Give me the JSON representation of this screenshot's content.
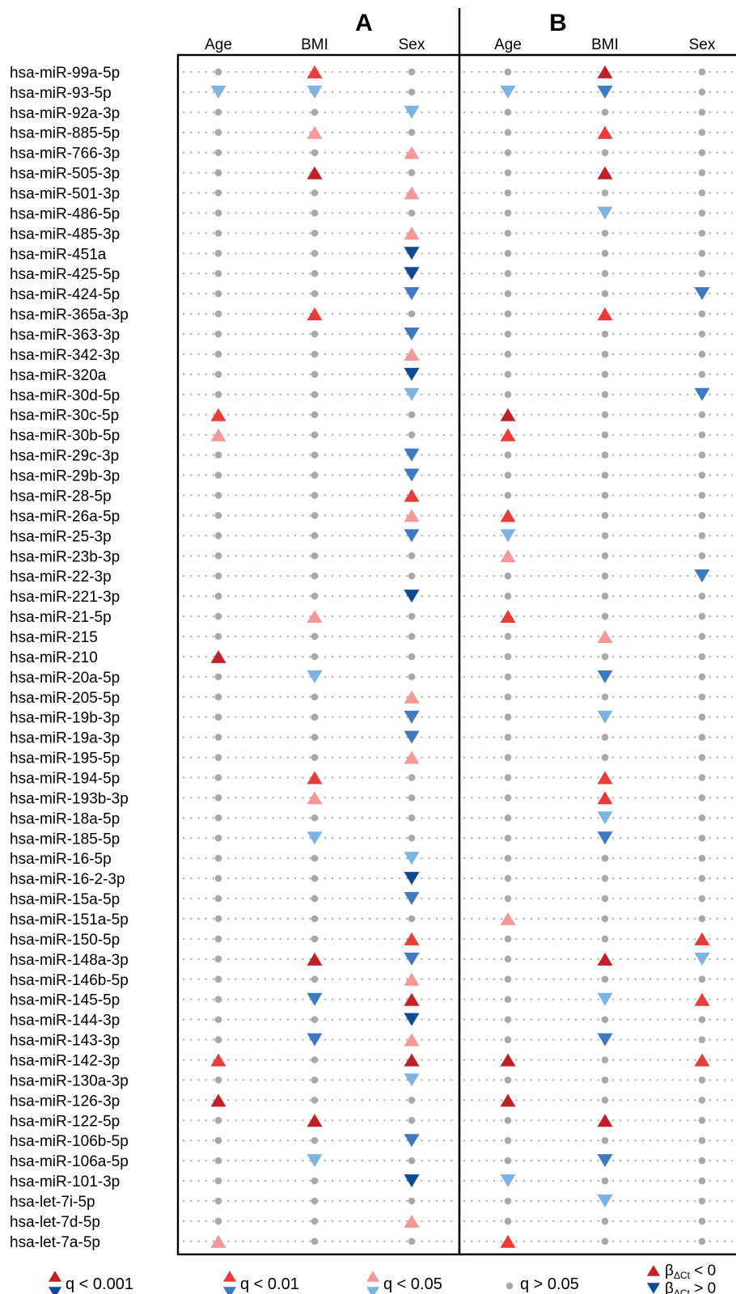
{
  "chart_data": {
    "type": "scatter",
    "panels": [
      {
        "label": "A",
        "columns": [
          "Age",
          "BMI",
          "Sex"
        ]
      },
      {
        "label": "B",
        "columns": [
          "Age",
          "BMI",
          "Sex"
        ]
      }
    ],
    "mirnas": [
      "hsa-miR-99a-5p",
      "hsa-miR-93-5p",
      "hsa-miR-92a-3p",
      "hsa-miR-885-5p",
      "hsa-miR-766-3p",
      "hsa-miR-505-3p",
      "hsa-miR-501-3p",
      "hsa-miR-486-5p",
      "hsa-miR-485-3p",
      "hsa-miR-451a",
      "hsa-miR-425-5p",
      "hsa-miR-424-5p",
      "hsa-miR-365a-3p",
      "hsa-miR-363-3p",
      "hsa-miR-342-3p",
      "hsa-miR-320a",
      "hsa-miR-30d-5p",
      "hsa-miR-30c-5p",
      "hsa-miR-30b-5p",
      "hsa-miR-29c-3p",
      "hsa-miR-29b-3p",
      "hsa-miR-28-5p",
      "hsa-miR-26a-5p",
      "hsa-miR-25-3p",
      "hsa-miR-23b-3p",
      "hsa-miR-22-3p",
      "hsa-miR-221-3p",
      "hsa-miR-21-5p",
      "hsa-miR-215",
      "hsa-miR-210",
      "hsa-miR-20a-5p",
      "hsa-miR-205-5p",
      "hsa-miR-19b-3p",
      "hsa-miR-19a-3p",
      "hsa-miR-195-5p",
      "hsa-miR-194-5p",
      "hsa-miR-193b-3p",
      "hsa-miR-18a-5p",
      "hsa-miR-185-5p",
      "hsa-miR-16-5p",
      "hsa-miR-16-2-3p",
      "hsa-miR-15a-5p",
      "hsa-miR-151a-5p",
      "hsa-miR-150-5p",
      "hsa-miR-148a-3p",
      "hsa-miR-146b-5p",
      "hsa-miR-145-5p",
      "hsa-miR-144-3p",
      "hsa-miR-143-3p",
      "hsa-miR-142-3p",
      "hsa-miR-130a-3p",
      "hsa-miR-126-3p",
      "hsa-miR-122-5p",
      "hsa-miR-106b-5p",
      "hsa-miR-106a-5p",
      "hsa-miR-101-3p",
      "hsa-let-7i-5p",
      "hsa-let-7d-5p",
      "hsa-let-7a-5p"
    ],
    "encoding_note": "cell codes: 0 = q > 0.05; +1/+2/+3 = up-triangle (beta_dCt < 0) at q<0.05/q<0.01/q<0.001; -1/-2/-3 = down-triangle (beta_dCt > 0) at q<0.05/q<0.01/q<0.001",
    "values": {
      "A": [
        [
          0,
          2,
          0
        ],
        [
          -1,
          -1,
          0
        ],
        [
          0,
          0,
          -1
        ],
        [
          0,
          1,
          0
        ],
        [
          0,
          0,
          1
        ],
        [
          0,
          3,
          0
        ],
        [
          0,
          0,
          1
        ],
        [
          0,
          0,
          0
        ],
        [
          0,
          0,
          1
        ],
        [
          0,
          0,
          -3
        ],
        [
          0,
          0,
          -3
        ],
        [
          0,
          0,
          -2
        ],
        [
          0,
          2,
          0
        ],
        [
          0,
          0,
          -2
        ],
        [
          0,
          0,
          1
        ],
        [
          0,
          0,
          -3
        ],
        [
          0,
          0,
          -1
        ],
        [
          2,
          0,
          0
        ],
        [
          1,
          0,
          0
        ],
        [
          0,
          0,
          -2
        ],
        [
          0,
          0,
          -2
        ],
        [
          0,
          0,
          2
        ],
        [
          0,
          0,
          1
        ],
        [
          0,
          0,
          -2
        ],
        [
          0,
          0,
          0
        ],
        [
          0,
          0,
          0
        ],
        [
          0,
          0,
          -3
        ],
        [
          0,
          1,
          0
        ],
        [
          0,
          0,
          0
        ],
        [
          3,
          0,
          0
        ],
        [
          0,
          -1,
          0
        ],
        [
          0,
          0,
          1
        ],
        [
          0,
          0,
          -2
        ],
        [
          0,
          0,
          -2
        ],
        [
          0,
          0,
          1
        ],
        [
          0,
          2,
          0
        ],
        [
          0,
          1,
          0
        ],
        [
          0,
          0,
          0
        ],
        [
          0,
          -1,
          0
        ],
        [
          0,
          0,
          -1
        ],
        [
          0,
          0,
          -3
        ],
        [
          0,
          0,
          -2
        ],
        [
          0,
          0,
          0
        ],
        [
          0,
          0,
          2
        ],
        [
          0,
          3,
          -2
        ],
        [
          0,
          0,
          1
        ],
        [
          0,
          -2,
          3
        ],
        [
          0,
          0,
          -3
        ],
        [
          0,
          -2,
          1
        ],
        [
          2,
          0,
          3
        ],
        [
          0,
          0,
          -1
        ],
        [
          3,
          0,
          0
        ],
        [
          0,
          3,
          0
        ],
        [
          0,
          0,
          -2
        ],
        [
          0,
          -1,
          0
        ],
        [
          0,
          0,
          -3
        ],
        [
          0,
          0,
          0
        ],
        [
          0,
          0,
          1
        ],
        [
          1,
          0,
          0
        ]
      ],
      "B": [
        [
          0,
          3,
          0
        ],
        [
          -1,
          -2,
          0
        ],
        [
          0,
          0,
          0
        ],
        [
          0,
          2,
          0
        ],
        [
          0,
          0,
          0
        ],
        [
          0,
          3,
          0
        ],
        [
          0,
          0,
          0
        ],
        [
          0,
          -1,
          0
        ],
        [
          0,
          0,
          0
        ],
        [
          0,
          0,
          0
        ],
        [
          0,
          0,
          0
        ],
        [
          0,
          0,
          -2
        ],
        [
          0,
          2,
          0
        ],
        [
          0,
          0,
          0
        ],
        [
          0,
          0,
          0
        ],
        [
          0,
          0,
          0
        ],
        [
          0,
          0,
          -2
        ],
        [
          3,
          0,
          0
        ],
        [
          2,
          0,
          0
        ],
        [
          0,
          0,
          0
        ],
        [
          0,
          0,
          0
        ],
        [
          0,
          0,
          0
        ],
        [
          2,
          0,
          0
        ],
        [
          -1,
          0,
          0
        ],
        [
          1,
          0,
          0
        ],
        [
          0,
          0,
          -2
        ],
        [
          0,
          0,
          0
        ],
        [
          2,
          0,
          0
        ],
        [
          0,
          1,
          0
        ],
        [
          0,
          0,
          0
        ],
        [
          0,
          -2,
          0
        ],
        [
          0,
          0,
          0
        ],
        [
          0,
          -1,
          0
        ],
        [
          0,
          0,
          0
        ],
        [
          0,
          0,
          0
        ],
        [
          0,
          2,
          0
        ],
        [
          0,
          2,
          0
        ],
        [
          0,
          -1,
          0
        ],
        [
          0,
          -2,
          0
        ],
        [
          0,
          0,
          0
        ],
        [
          0,
          0,
          0
        ],
        [
          0,
          0,
          0
        ],
        [
          1,
          0,
          0
        ],
        [
          0,
          0,
          2
        ],
        [
          0,
          3,
          -1
        ],
        [
          0,
          0,
          0
        ],
        [
          0,
          -1,
          2
        ],
        [
          0,
          0,
          0
        ],
        [
          0,
          -2,
          0
        ],
        [
          3,
          0,
          2
        ],
        [
          0,
          0,
          0
        ],
        [
          3,
          0,
          0
        ],
        [
          0,
          3,
          0
        ],
        [
          0,
          0,
          0
        ],
        [
          0,
          -2,
          0
        ],
        [
          -1,
          0,
          0
        ],
        [
          0,
          -1,
          0
        ],
        [
          0,
          0,
          0
        ],
        [
          2,
          0,
          0
        ]
      ]
    },
    "legend": {
      "items": [
        "q < 0.001",
        "q < 0.01",
        "q < 0.05",
        "q > 0.05"
      ],
      "direction_up": "< 0",
      "direction_down": "> 0",
      "beta_symbol": "β",
      "beta_subscript": "ΔCt",
      "position": "bottom"
    }
  },
  "colors": {
    "up_3": "#c21f27",
    "up_2": "#ea3b3b",
    "up_1": "#f4989a",
    "down_3": "#0b4a96",
    "down_2": "#3f79c2",
    "down_1": "#7db3e3",
    "ns": "#a9a9a9",
    "dotted_line": "#b3b3b3",
    "frame": "#000000"
  }
}
